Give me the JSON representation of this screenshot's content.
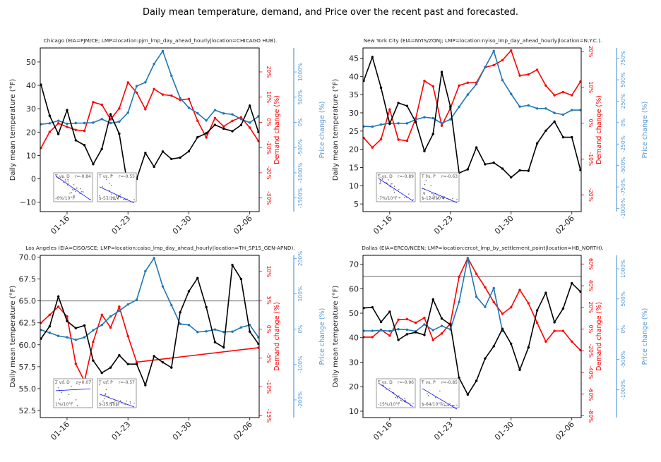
{
  "figure_title": "Daily mean temperature, demand, and Price over the recent past and forecasted.",
  "labels": {
    "temperature_axis": "Daily mean temperature (°F)",
    "demand_axis": "Demand change (%)",
    "price_axis": "Price change (%)",
    "inset_demand": "T vs. D",
    "inset_price": "T vs. P"
  },
  "colors": {
    "temperature": "#000000",
    "demand": "#ff0000",
    "price": "#1f77b4",
    "price_axis": "#5b9bd5",
    "fit_line": "#0000ff",
    "scatter": "#555555"
  },
  "chart_data": {
    "type": "line",
    "dates": [
      "01-13",
      "01-14",
      "01-15",
      "01-16",
      "01-17",
      "01-18",
      "01-19",
      "01-20",
      "01-21",
      "01-22",
      "01-23",
      "01-24",
      "01-25",
      "01-26",
      "01-27",
      "01-28",
      "01-29",
      "01-30",
      "01-31",
      "02-01",
      "02-02",
      "02-03",
      "02-04",
      "02-05",
      "02-06",
      "02-07"
    ],
    "x_ticks": [
      "01-16",
      "01-23",
      "01-30",
      "02-06"
    ],
    "panels": [
      {
        "title": "Chicago (EIA=PJM/CE; LMP=location:pjm_lmp_day_ahead_hourly|location=CHICAGO HUB).",
        "temp_ylim": [
          -14,
          56
        ],
        "temp_ticks": [
          "−10",
          "0",
          "10",
          "20",
          "30",
          "40",
          "50"
        ],
        "demand_ylim": [
          -35.4,
          29.5
        ],
        "demand_ticks": [
          -30,
          -20,
          -10,
          0,
          10,
          20
        ],
        "price_ylim": [
          -1771,
          1477
        ],
        "price_ticks": [
          -1500,
          -1000,
          -500,
          0,
          500,
          1000
        ],
        "hline": null,
        "temperature": [
          40.3,
          27,
          19.2,
          29.4,
          16.5,
          14.4,
          6.3,
          12.8,
          27.6,
          19.3,
          -3.7,
          0,
          11.1,
          5.2,
          11.7,
          8.5,
          9.1,
          11.8,
          17.8,
          19.5,
          23.1,
          21.5,
          20.4,
          23,
          31.3,
          20
        ],
        "demand": [
          -10.2,
          -3.8,
          -0.4,
          -1.8,
          -3,
          -3.4,
          8,
          7,
          1.2,
          5.5,
          15.8,
          11.8,
          5.2,
          13.2,
          11,
          10.6,
          8.9,
          9.3,
          0.6,
          -6,
          1.7,
          -1.6,
          0.6,
          2,
          -2.1,
          -7.4
        ],
        "price": [
          -37,
          -19,
          33,
          -28,
          -14,
          -14,
          -5,
          65,
          -14,
          14,
          192,
          720,
          795,
          1160,
          1416,
          925,
          481,
          290,
          182,
          37,
          243,
          178,
          159,
          65,
          -5,
          121
        ],
        "insets": [
          {
            "r": "r=-0.84",
            "slope": "-6%/10°F"
          },
          {
            "r": "r=-0.55",
            "slope": "$-57/10°F"
          }
        ]
      },
      {
        "title": "New York City (EIA=NYIS/ZONJ; LMP=location:nyiso_lmp_day_ahead_hourly|location=N.Y.C.).",
        "temp_ylim": [
          2.9,
          47.8
        ],
        "temp_ticks": [
          "5",
          "10",
          "15",
          "20",
          "25",
          "30",
          "35",
          "40",
          "45"
        ],
        "demand_ylim": [
          -24.7,
          21
        ],
        "demand_ticks": [
          -20,
          -10,
          0,
          10,
          20
        ],
        "price_ylim": [
          -1038,
          871
        ],
        "price_ticks": [
          -1000,
          -750,
          -500,
          -250,
          0,
          250,
          500,
          750
        ],
        "hline": null,
        "temperature": [
          38.8,
          45.3,
          36.9,
          27.0,
          32.7,
          31.9,
          27.5,
          19.5,
          24.2,
          41.2,
          31.7,
          13.5,
          14.5,
          20.5,
          15.9,
          16.3,
          14.7,
          12.3,
          14.2,
          14.1,
          21.6,
          25.1,
          27.6,
          23.3,
          23.3,
          14.3
        ],
        "demand": [
          -4.1,
          -6.8,
          -4.5,
          3.8,
          -4.6,
          -4.9,
          1.3,
          11.8,
          10.3,
          -0.7,
          4.2,
          10.5,
          11.3,
          11.3,
          15.6,
          16.2,
          17.6,
          20.3,
          13.3,
          13.6,
          14.9,
          10.5,
          7.8,
          8.7,
          7.8,
          11.6
        ],
        "price": [
          -44,
          -47,
          -22,
          -8,
          -8,
          -8,
          36,
          63,
          52,
          -8,
          38,
          184,
          327,
          448,
          646,
          835,
          495,
          335,
          187,
          201,
          165,
          165,
          113,
          93,
          146,
          146
        ],
        "insets": [
          {
            "r": "r=-0.89",
            "slope": "-7%/10°F"
          },
          {
            "r": "r=-0.63",
            "slope": "$-124/10°F"
          }
        ]
      },
      {
        "title": "Los Angeles (EIA=CISO/SCE; LMP=location:caiso_lmp_day_ahead_hourly|location=TH_SP15_GEN-APND).",
        "temp_ylim": [
          51.7,
          70.2
        ],
        "temp_ticks": [
          "52.5",
          "55.0",
          "57.5",
          "60.0",
          "62.5",
          "65.0",
          "67.5",
          "70.0"
        ],
        "demand_ylim": [
          -15.3,
          12.8
        ],
        "demand_ticks": [
          -15,
          -10,
          -5,
          0,
          5,
          10
        ],
        "price_ylim": [
          -250,
          209
        ],
        "price_ticks": [
          -200,
          -100,
          0,
          100,
          200
        ],
        "hline": 65,
        "temperature": [
          60.7,
          62.1,
          65.5,
          62.7,
          61.9,
          62.2,
          58.2,
          56.8,
          57.4,
          58.8,
          57.8,
          57.8,
          55.4,
          58.7,
          58.0,
          57.4,
          63.7,
          66.1,
          67.6,
          64.3,
          60.3,
          59.7,
          69.1,
          67.5,
          61.5,
          60.1
        ],
        "demand": [
          1.1,
          2.5,
          3.9,
          2.2,
          -6.0,
          -9.0,
          -2.2,
          2.5,
          0.3,
          3.9,
          -1.2,
          -5.7,
          null,
          null,
          null,
          null,
          null,
          null,
          null,
          null,
          null,
          null,
          null,
          null,
          null,
          -3.2
        ],
        "price": [
          -2,
          -10,
          -19,
          -23,
          -30,
          -23,
          -3,
          12,
          36,
          52,
          70,
          83,
          164,
          201,
          121,
          68,
          15,
          12,
          -8,
          -6,
          -1,
          -8,
          -7,
          5,
          12,
          -23
        ],
        "insets": [
          {
            "r": "r=0.07",
            "slope": "1%/10°F"
          },
          {
            "r": "r=-0.57",
            "slope": "$-25/10°F"
          }
        ]
      },
      {
        "title": "Dallas (EIA=ERCO/NCEN; LMP=location:ercot_lmp_by_settlement_point|location=HB_NORTH).",
        "temp_ylim": [
          7.4,
          73.6
        ],
        "temp_ticks": [
          "10",
          "20",
          "30",
          "40",
          "50",
          "60",
          "70"
        ],
        "demand_ylim": [
          -81.6,
          68
        ],
        "demand_ticks": [
          -80,
          -60,
          -40,
          -20,
          0,
          20,
          40,
          60
        ],
        "price_ylim": [
          -1461,
          1221
        ],
        "price_ticks": [
          -1000,
          -500,
          0,
          500,
          1000
        ],
        "hline": 65,
        "temperature": [
          52.1,
          52.4,
          46.4,
          50.6,
          39.1,
          41.4,
          42.2,
          41.1,
          55.6,
          47.8,
          45.3,
          23.6,
          16.8,
          22.4,
          31.5,
          36.5,
          43.6,
          37.5,
          26.9,
          36.0,
          51.1,
          58.3,
          46.3,
          51.9,
          62.2,
          58.8
        ],
        "demand": [
          -7.4,
          -7.4,
          -0.6,
          -6.1,
          8.7,
          9.1,
          5.8,
          10.4,
          -10,
          -4.1,
          5.2,
          48.3,
          65.4,
          50.9,
          38.5,
          24.9,
          14.1,
          20.1,
          36.1,
          23.8,
          5.8,
          -11.5,
          -1.7,
          -1.7,
          -11.5,
          -19.5
        ],
        "price": [
          -27,
          -27,
          -19,
          -31,
          0,
          -8,
          -35,
          78,
          -16,
          54,
          -4,
          450,
          1174,
          535,
          368,
          678,
          -31,
          null,
          null,
          null,
          null,
          null,
          null,
          null,
          null,
          null
        ],
        "insets": [
          {
            "r": "r=-0.96",
            "slope": "-15%/10°F"
          },
          {
            "r": "r=-0.85",
            "slope": "$-64/10°F"
          }
        ]
      }
    ]
  }
}
